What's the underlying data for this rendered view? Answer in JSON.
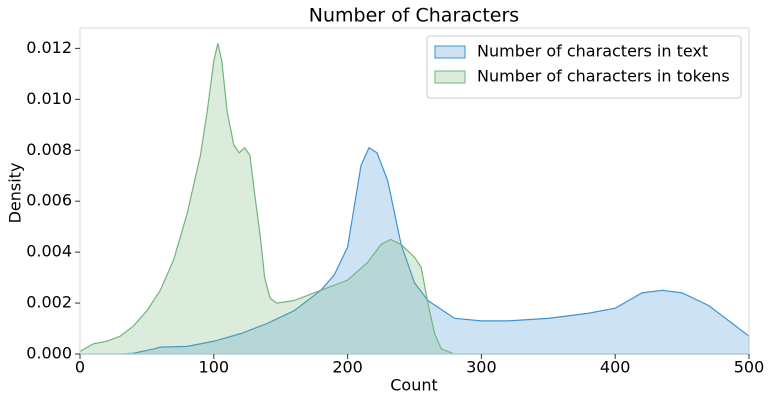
{
  "chart_data": {
    "type": "area",
    "title": "Number of Characters",
    "x_label": "Count",
    "y_label": "Density",
    "xlim": [
      0,
      500
    ],
    "ylim": [
      0,
      0.0128
    ],
    "xticks": [
      0,
      100,
      200,
      300,
      400,
      500
    ],
    "yticks": [
      {
        "value": 0,
        "label": "0.000"
      },
      {
        "value": 0.002,
        "label": "0.002"
      },
      {
        "value": 0.004,
        "label": "0.004"
      },
      {
        "value": 0.006,
        "label": "0.006"
      },
      {
        "value": 0.008,
        "label": "0.008"
      },
      {
        "value": 0.01,
        "label": "0.010"
      },
      {
        "value": 0.012,
        "label": "0.012"
      }
    ],
    "legend": "upper right",
    "series": [
      {
        "name": "Number of characters in text",
        "color": "#3c93d4",
        "x": [
          0,
          30,
          40,
          55,
          60,
          80,
          100,
          120,
          140,
          160,
          180,
          190,
          200,
          210,
          216,
          222,
          230,
          240,
          250,
          260,
          280,
          300,
          320,
          350,
          380,
          400,
          420,
          435,
          450,
          470,
          500
        ],
        "values": [
          0,
          0,
          3e-05,
          0.0002,
          0.00027,
          0.0003,
          0.0005,
          0.0008,
          0.0012,
          0.0017,
          0.0025,
          0.0031,
          0.0042,
          0.0074,
          0.0081,
          0.0079,
          0.0068,
          0.0043,
          0.0028,
          0.0021,
          0.0014,
          0.0013,
          0.0013,
          0.0014,
          0.0016,
          0.0018,
          0.0024,
          0.0025,
          0.0024,
          0.0019,
          0.0007
        ]
      },
      {
        "name": "Number of characters in tokens",
        "color": "#72b57c",
        "x": [
          0,
          10,
          20,
          30,
          40,
          50,
          60,
          70,
          80,
          90,
          95,
          100,
          103,
          106,
          110,
          115,
          119,
          123,
          127,
          130,
          135,
          138,
          142,
          147,
          160,
          180,
          200,
          215,
          225,
          232,
          240,
          250,
          255,
          260,
          265,
          270,
          280,
          300,
          400,
          500
        ],
        "values": [
          0.0001,
          0.0004,
          0.0005,
          0.0007,
          0.0011,
          0.0017,
          0.0025,
          0.0037,
          0.0055,
          0.0078,
          0.0095,
          0.0115,
          0.0122,
          0.0115,
          0.0095,
          0.0082,
          0.0079,
          0.0081,
          0.0078,
          0.0065,
          0.0045,
          0.003,
          0.0022,
          0.002,
          0.0021,
          0.0025,
          0.0029,
          0.0036,
          0.0043,
          0.0045,
          0.0043,
          0.0038,
          0.0034,
          0.002,
          0.0008,
          0.0002,
          0,
          0,
          0,
          0
        ]
      }
    ]
  }
}
